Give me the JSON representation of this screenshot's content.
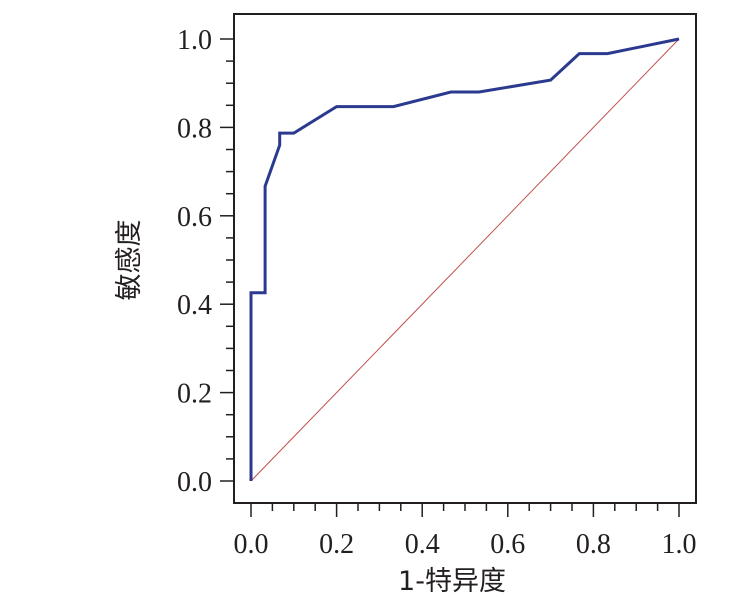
{
  "chart_data": {
    "type": "line",
    "title": "",
    "xlabel": "1-特异度",
    "ylabel": "敏感度",
    "xlim": [
      0,
      1
    ],
    "ylim": [
      0,
      1
    ],
    "grid": false,
    "xticks": [
      "0.0",
      "0.2",
      "0.4",
      "0.6",
      "0.8",
      "1.0"
    ],
    "yticks": [
      "0.0",
      "0.2",
      "0.4",
      "0.6",
      "0.8",
      "1.0"
    ],
    "series": [
      {
        "color": "#2b3a8f",
        "x": [
          0.0,
          0.0,
          0.0,
          0.033,
          0.033,
          0.033,
          0.067,
          0.067,
          0.1,
          0.2,
          0.333,
          0.467,
          0.533,
          0.7,
          0.767,
          0.833,
          1.0
        ],
        "y": [
          0.0,
          0.426,
          0.426,
          0.426,
          0.667,
          0.667,
          0.76,
          0.787,
          0.787,
          0.847,
          0.847,
          0.88,
          0.88,
          0.907,
          0.967,
          0.967,
          1.0
        ]
      },
      {
        "color": "#c0504d",
        "x": [
          0,
          1
        ],
        "y": [
          0,
          1
        ]
      }
    ]
  }
}
